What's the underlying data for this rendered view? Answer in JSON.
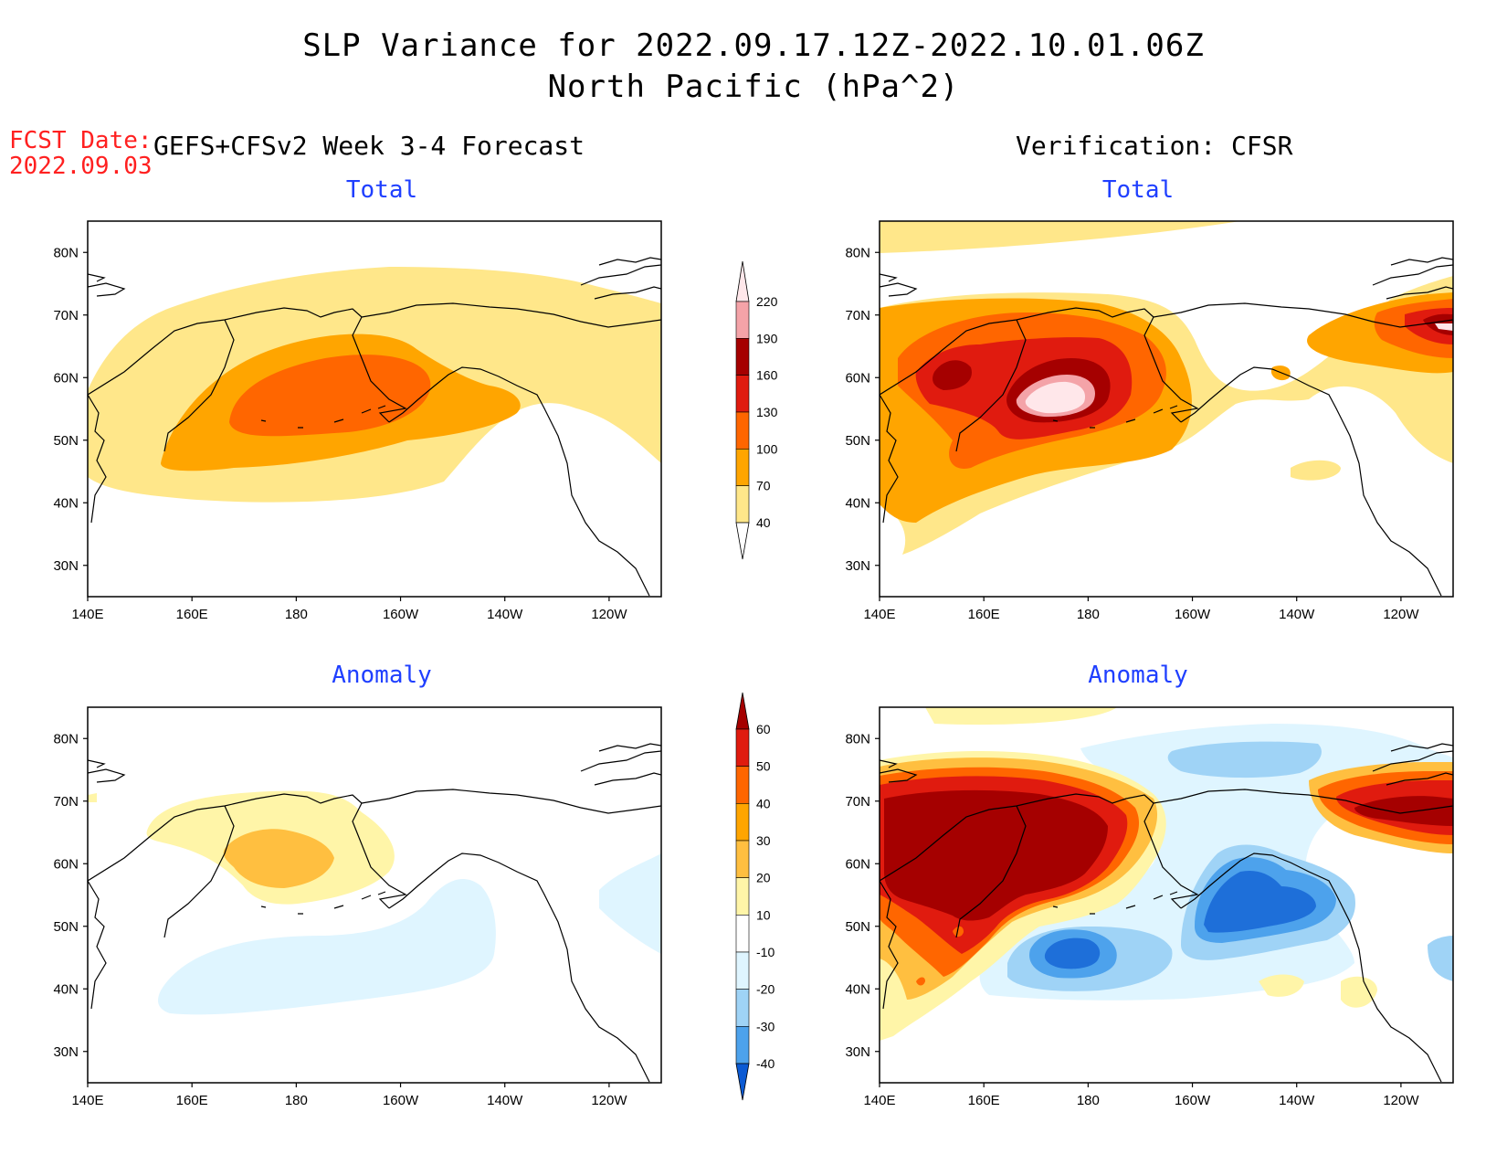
{
  "title": {
    "line1": "SLP Variance for 2022.09.17.12Z-2022.10.01.06Z",
    "line2": "North Pacific (hPa^2)"
  },
  "forecast_date": {
    "label": "FCST Date:",
    "value": "2022.09.03"
  },
  "columns": {
    "left": "GEFS+CFSv2 Week 3-4 Forecast",
    "right": "Verification: CFSR"
  },
  "panels": {
    "forecast_total": "Total",
    "verification_total": "Total",
    "forecast_anomaly": "Anomaly",
    "verification_anomaly": "Anomaly"
  },
  "map": {
    "lat_labels": [
      "80N",
      "70N",
      "60N",
      "50N",
      "40N",
      "30N"
    ],
    "lon_labels": [
      "140E",
      "160E",
      "180",
      "160W",
      "140W",
      "120W"
    ]
  },
  "colorbars": {
    "total": {
      "levels": [
        "40",
        "70",
        "100",
        "130",
        "160",
        "190",
        "220"
      ],
      "colors": [
        "#ffe78a",
        "#ffa500",
        "#ff6600",
        "#e01b0f",
        "#a50000",
        "#f4a3a8",
        "#ffe7ea"
      ]
    },
    "anomaly": {
      "levels": [
        "60",
        "50",
        "40",
        "30",
        "20",
        "10",
        "-10",
        "-20",
        "-30",
        "-40"
      ],
      "colors": [
        "#a50000",
        "#e01b0f",
        "#ff6600",
        "#ffa500",
        "#ffbf40",
        "#fff5a8",
        "#ffffff",
        "#dff5ff",
        "#9fd3f6",
        "#4da2ec",
        "#1e6fd9",
        "#0b5ad3"
      ]
    }
  },
  "palette": {
    "yellow": "#ffe78a",
    "orange": "#ffa500",
    "dark_orange": "#ff6600",
    "red": "#e01b0f",
    "dark_red": "#a50000",
    "pink": "#f4a3a8",
    "light_pink": "#ffe7ea",
    "pale_yellow": "#fff5a8",
    "light_orange": "#ffbf40",
    "pale_blue": "#dff5ff",
    "light_blue": "#9fd3f6",
    "mid_blue": "#4da2ec",
    "blue": "#1e6fd9"
  }
}
